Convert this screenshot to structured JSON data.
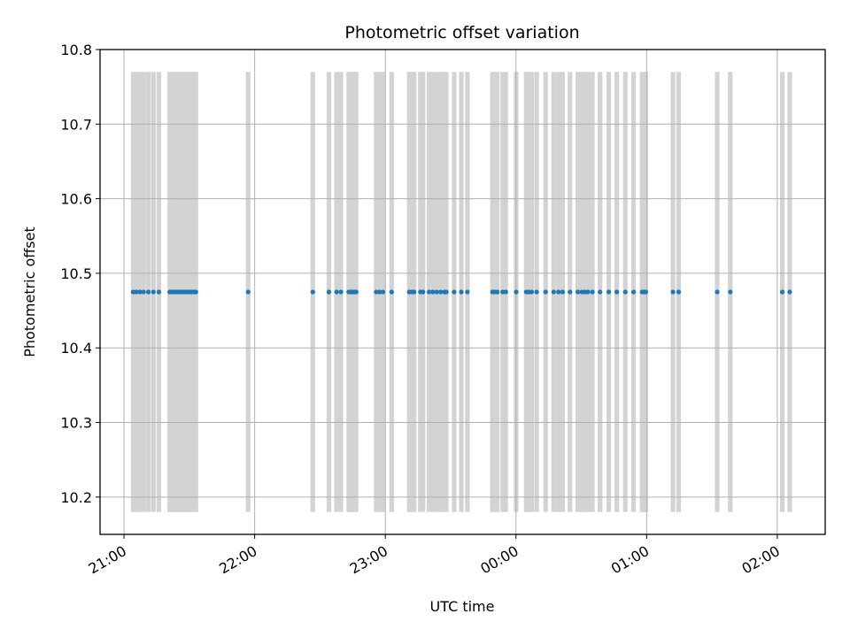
{
  "chart_data": {
    "type": "scatter",
    "title": "Photometric offset variation",
    "xlabel": "UTC time",
    "ylabel": "Photometric offset",
    "x_ticks": [
      "21:00",
      "22:00",
      "23:00",
      "00:00",
      "01:00",
      "02:00"
    ],
    "x_tick_minutes": [
      0,
      60,
      120,
      180,
      240,
      300
    ],
    "y_ticks": [
      "10.2",
      "10.3",
      "10.4",
      "10.5",
      "10.6",
      "10.7",
      "10.8"
    ],
    "y_tick_values": [
      10.2,
      10.3,
      10.4,
      10.5,
      10.6,
      10.7,
      10.8
    ],
    "xlim_minutes": [
      -11,
      322
    ],
    "ylim": [
      10.15,
      10.8
    ],
    "grid": true,
    "band_range": [
      10.18,
      10.77
    ],
    "band_color": "#d3d3d3",
    "point_color": "#1f77b4",
    "y_value": 10.475,
    "x_minutes": [
      4.2,
      5.6,
      7.3,
      9.0,
      11.2,
      13.5,
      16.0,
      21.0,
      21.7,
      22.5,
      23.3,
      24.1,
      24.9,
      25.7,
      26.5,
      27.3,
      28.1,
      28.9,
      29.7,
      30.5,
      31.3,
      32.1,
      33.0,
      57.0,
      86.7,
      94.1,
      97.6,
      99.6,
      103.2,
      104.1,
      104.9,
      105.8,
      106.6,
      115.8,
      117.3,
      118.9,
      122.9,
      131.0,
      132.3,
      133.2,
      136.1,
      137.3,
      140.1,
      141.8,
      143.6,
      145.4,
      147.1,
      148.0,
      151.6,
      154.9,
      157.7,
      169.2,
      170.2,
      171.4,
      173.9,
      175.3,
      180.1,
      184.7,
      185.9,
      187.2,
      189.5,
      193.6,
      197.3,
      199.5,
      201.4,
      204.8,
      208.4,
      210.2,
      211.6,
      213.0,
      215.1,
      218.6,
      222.6,
      226.3,
      230.2,
      234.0,
      237.9,
      238.7,
      239.6,
      252.1,
      254.7,
      272.4,
      278.4,
      302.3,
      305.7
    ]
  }
}
